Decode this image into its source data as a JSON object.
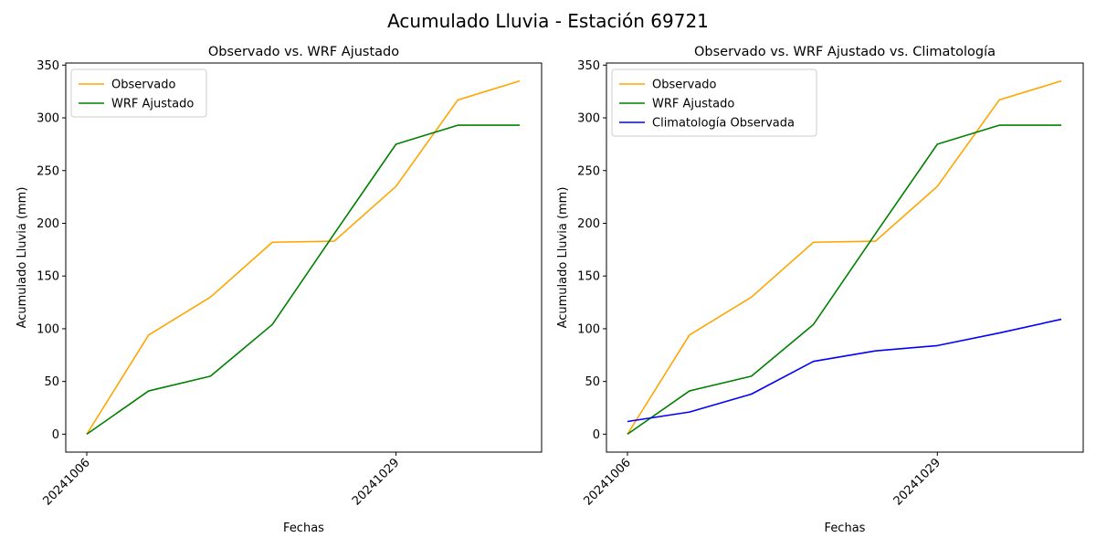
{
  "figure": {
    "suptitle": "Acumulado Lluvia - Estación 69721"
  },
  "colors": {
    "observado": "#ffa500",
    "wrf": "#008000",
    "clima": "#0000ff"
  },
  "chart_data": [
    {
      "type": "line",
      "title": "Observado vs. WRF Ajustado",
      "xlabel": "Fechas",
      "ylabel": "Acumulado Lluvia (mm)",
      "x_tick_labels": [
        "20241006",
        "20241029"
      ],
      "x_tick_indices": [
        0,
        5
      ],
      "yticks": [
        0,
        50,
        100,
        150,
        200,
        250,
        300,
        350
      ],
      "ylim": [
        -17,
        352
      ],
      "x_points": 8,
      "legend_position": "upper-left",
      "grid": false,
      "series": [
        {
          "name": "Observado",
          "color_key": "observado",
          "values": [
            0,
            94,
            130,
            182,
            183,
            235,
            317,
            335
          ]
        },
        {
          "name": "WRF Ajustado",
          "color_key": "wrf",
          "values": [
            0,
            41,
            55,
            104,
            190,
            275,
            293,
            293
          ]
        }
      ]
    },
    {
      "type": "line",
      "title": "Observado vs. WRF Ajustado vs. Climatología",
      "xlabel": "Fechas",
      "ylabel": "Acumulado Lluvia (mm)",
      "x_tick_labels": [
        "20241006",
        "20241029"
      ],
      "x_tick_indices": [
        0,
        5
      ],
      "yticks": [
        0,
        50,
        100,
        150,
        200,
        250,
        300,
        350
      ],
      "ylim": [
        -17,
        352
      ],
      "x_points": 8,
      "legend_position": "upper-left",
      "grid": false,
      "series": [
        {
          "name": "Observado",
          "color_key": "observado",
          "values": [
            0,
            94,
            130,
            182,
            183,
            235,
            317,
            335
          ]
        },
        {
          "name": "WRF Ajustado",
          "color_key": "wrf",
          "values": [
            0,
            41,
            55,
            104,
            190,
            275,
            293,
            293
          ]
        },
        {
          "name": "Climatología Observada",
          "color_key": "clima",
          "values": [
            12,
            21,
            38,
            69,
            79,
            84,
            96,
            109
          ]
        }
      ]
    }
  ]
}
